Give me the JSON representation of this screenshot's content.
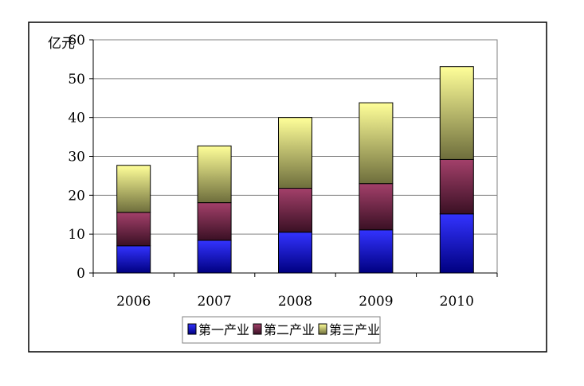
{
  "chart_data": {
    "type": "bar",
    "stacked": true,
    "title": "",
    "xlabel": "",
    "ylabel": "亿元",
    "ylim": [
      0,
      60
    ],
    "yticks": [
      0,
      10,
      20,
      30,
      40,
      50,
      60
    ],
    "categories": [
      "2006",
      "2007",
      "2008",
      "2009",
      "2010"
    ],
    "series": [
      {
        "name": "第一产业",
        "values": [
          7.0,
          8.4,
          10.5,
          11.1,
          15.2
        ],
        "color_top": "#3333ff",
        "color_bottom": "#000080"
      },
      {
        "name": "第二产业",
        "values": [
          8.6,
          9.7,
          11.3,
          11.9,
          14.0
        ],
        "color_top": "#a3406a",
        "color_bottom": "#3a1024"
      },
      {
        "name": "第三产业",
        "values": [
          12.1,
          14.6,
          18.2,
          20.8,
          23.9
        ],
        "color_top": "#ffff99",
        "color_bottom": "#6e6e3c"
      }
    ],
    "grid": true,
    "legend_position": "bottom"
  }
}
